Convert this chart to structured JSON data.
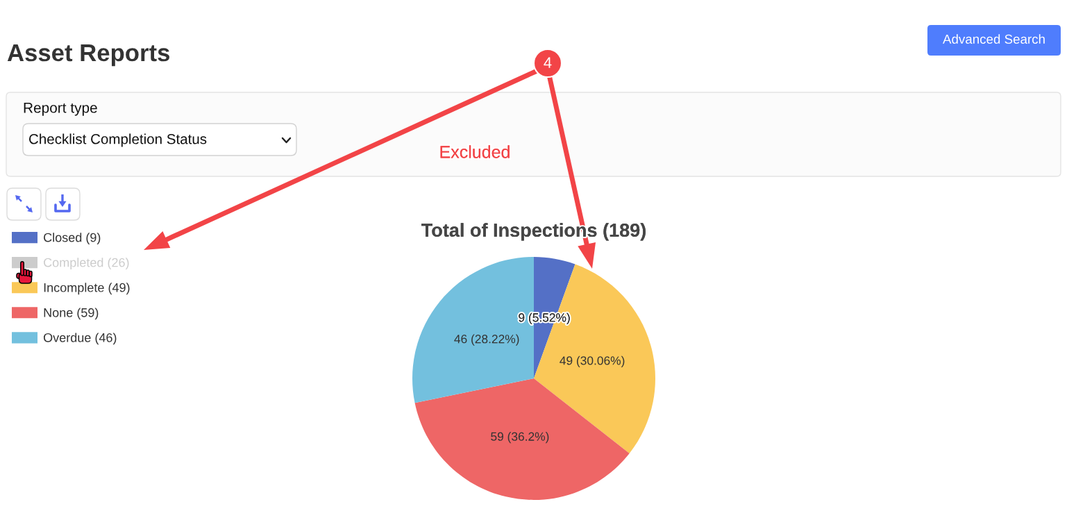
{
  "chart_data": {
    "type": "pie",
    "title": "Total of Inspections (189)",
    "categories": [
      "Closed (9)",
      "Completed (26)",
      "Incomplete (49)",
      "None (59)",
      "Overdue (46)"
    ],
    "values": [
      9,
      null,
      49,
      59,
      46
    ],
    "colors": [
      "#5470c6",
      "#cccccc",
      "#fac858",
      "#ee6666",
      "#73c0de"
    ],
    "value_labels": [
      "9 (5.52%)",
      null,
      "49 (30.06%)",
      "59 (36.2%)",
      "46 (28.22%)"
    ],
    "legend": "top left",
    "annotations": [
      "Asset Reports",
      "Advanced Search",
      "Report type",
      "Checklist Completion Status",
      "4",
      "Excluded"
    ]
  }
}
